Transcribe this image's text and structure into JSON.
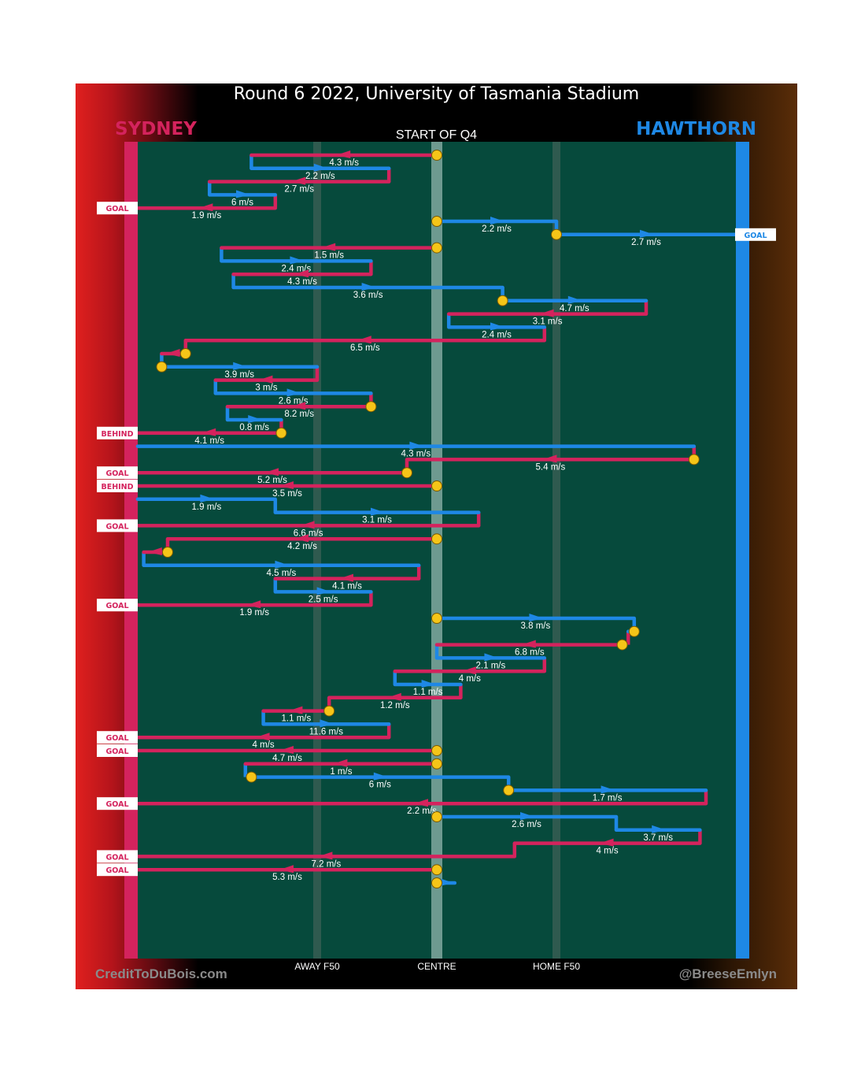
{
  "title": "Round 6 2022, University of Tasmania Stadium",
  "subtitle": "START OF Q4",
  "teams": {
    "left": {
      "name": "SYDNEY",
      "color": "#d4235d"
    },
    "right": {
      "name": "HAWTHORN",
      "color": "#1e88e5"
    }
  },
  "footer": {
    "left": "CreditToDuBois.com",
    "right": "@BreeseEmlyn"
  },
  "colors": {
    "field": "#064a3c",
    "sydney": "#d4235d",
    "hawthorn": "#1e88e5",
    "marker": "#f5c518",
    "centre_band": "#6e9a90"
  },
  "chart_data": {
    "type": "line",
    "description_axis": "field position from Sydney goal line (0) to Hawthorn goal line (1)",
    "x_ticks": [
      {
        "label": "AWAY F50",
        "value": 0.3
      },
      {
        "label": "CENTRE",
        "value": 0.5
      },
      {
        "label": "HOME F50",
        "value": 0.7
      }
    ],
    "chains": [
      {
        "team": "sydney",
        "from": 0.5,
        "to": 0.19,
        "speed": "4.3 m/s",
        "start_marker": true
      },
      {
        "team": "hawthorn",
        "from": 0.19,
        "to": 0.42,
        "speed": "2.2 m/s"
      },
      {
        "team": "sydney",
        "from": 0.42,
        "to": 0.12,
        "speed": "2.7 m/s"
      },
      {
        "team": "hawthorn",
        "from": 0.12,
        "to": 0.23,
        "speed": "6 m/s"
      },
      {
        "team": "sydney",
        "from": 0.23,
        "to": 0.0,
        "speed": "1.9 m/s",
        "result": "GOAL"
      },
      {
        "team": "hawthorn",
        "from": 0.5,
        "to": 0.7,
        "speed": "2.2 m/s",
        "start_marker": true
      },
      {
        "team": "hawthorn",
        "from": 0.7,
        "to": 1.0,
        "speed": "2.7 m/s",
        "start_marker": true,
        "result": "GOAL"
      },
      {
        "team": "sydney",
        "from": 0.5,
        "to": 0.14,
        "speed": "1.5 m/s",
        "start_marker": true
      },
      {
        "team": "hawthorn",
        "from": 0.14,
        "to": 0.39,
        "speed": "2.4 m/s"
      },
      {
        "team": "sydney",
        "from": 0.39,
        "to": 0.16,
        "speed": "4.3 m/s"
      },
      {
        "team": "hawthorn",
        "from": 0.16,
        "to": 0.61,
        "speed": "3.6 m/s"
      },
      {
        "team": "hawthorn",
        "from": 0.61,
        "to": 0.85,
        "speed": "4.7 m/s",
        "start_marker": true
      },
      {
        "team": "sydney",
        "from": 0.85,
        "to": 0.52,
        "speed": "3.1 m/s"
      },
      {
        "team": "hawthorn",
        "from": 0.52,
        "to": 0.68,
        "speed": "2.4 m/s"
      },
      {
        "team": "sydney",
        "from": 0.68,
        "to": 0.08,
        "speed": "6.5 m/s"
      },
      {
        "team": "sydney",
        "from": 0.08,
        "to": 0.04,
        "speed": "",
        "start_marker": true
      },
      {
        "team": "hawthorn",
        "from": 0.04,
        "to": 0.3,
        "speed": "3.9 m/s",
        "start_marker": true
      },
      {
        "team": "sydney",
        "from": 0.3,
        "to": 0.13,
        "speed": "3 m/s"
      },
      {
        "team": "hawthorn",
        "from": 0.13,
        "to": 0.39,
        "speed": "2.6 m/s"
      },
      {
        "team": "sydney",
        "from": 0.39,
        "to": 0.15,
        "speed": "8.2 m/s",
        "start_marker": true
      },
      {
        "team": "hawthorn",
        "from": 0.15,
        "to": 0.24,
        "speed": "0.8 m/s"
      },
      {
        "team": "sydney",
        "from": 0.24,
        "to": 0.0,
        "speed": "4.1 m/s",
        "start_marker": true,
        "result": "BEHIND"
      },
      {
        "team": "hawthorn",
        "from": 0.0,
        "to": 0.93,
        "speed": "4.3 m/s"
      },
      {
        "team": "sydney",
        "from": 0.93,
        "to": 0.45,
        "speed": "5.4 m/s",
        "start_marker": true
      },
      {
        "team": "sydney",
        "from": 0.45,
        "to": 0.0,
        "speed": "5.2 m/s",
        "start_marker": true,
        "result": "GOAL"
      },
      {
        "team": "sydney",
        "from": 0.5,
        "to": 0.0,
        "speed": "3.5 m/s",
        "start_marker": true,
        "result": "BEHIND"
      },
      {
        "team": "hawthorn",
        "from": 0.0,
        "to": 0.23,
        "speed": "1.9 m/s"
      },
      {
        "team": "hawthorn",
        "from": 0.23,
        "to": 0.57,
        "speed": "3.1 m/s"
      },
      {
        "team": "sydney",
        "from": 0.57,
        "to": 0.0,
        "speed": "6.6 m/s",
        "result": "GOAL"
      },
      {
        "team": "sydney",
        "from": 0.5,
        "to": 0.05,
        "speed": "4.2 m/s",
        "start_marker": true
      },
      {
        "team": "sydney",
        "from": 0.05,
        "to": 0.01,
        "speed": "",
        "start_marker": true
      },
      {
        "team": "hawthorn",
        "from": 0.01,
        "to": 0.47,
        "speed": "4.5 m/s"
      },
      {
        "team": "sydney",
        "from": 0.47,
        "to": 0.23,
        "speed": "4.1 m/s"
      },
      {
        "team": "hawthorn",
        "from": 0.23,
        "to": 0.39,
        "speed": "2.5 m/s"
      },
      {
        "team": "sydney",
        "from": 0.39,
        "to": 0.0,
        "speed": "1.9 m/s",
        "result": "GOAL"
      },
      {
        "team": "hawthorn",
        "from": 0.5,
        "to": 0.83,
        "speed": "3.8 m/s",
        "start_marker": true
      },
      {
        "team": "hawthorn",
        "from": 0.83,
        "to": 0.82,
        "speed": "",
        "start_marker": true
      },
      {
        "team": "sydney",
        "from": 0.81,
        "to": 0.5,
        "speed": "6.8 m/s",
        "start_marker": true
      },
      {
        "team": "hawthorn",
        "from": 0.5,
        "to": 0.68,
        "speed": "2.1 m/s"
      },
      {
        "team": "sydney",
        "from": 0.68,
        "to": 0.43,
        "speed": "4 m/s"
      },
      {
        "team": "hawthorn",
        "from": 0.43,
        "to": 0.54,
        "speed": "1.1 m/s"
      },
      {
        "team": "sydney",
        "from": 0.54,
        "to": 0.32,
        "speed": "1.2 m/s"
      },
      {
        "team": "sydney",
        "from": 0.32,
        "to": 0.21,
        "speed": "1.1 m/s",
        "start_marker": true
      },
      {
        "team": "hawthorn",
        "from": 0.21,
        "to": 0.42,
        "speed": "11.6 m/s"
      },
      {
        "team": "sydney",
        "from": 0.42,
        "to": 0.0,
        "speed": "4 m/s",
        "result": "GOAL"
      },
      {
        "team": "sydney",
        "from": 0.5,
        "to": 0.0,
        "speed": "4.7 m/s",
        "start_marker": true,
        "result": "GOAL"
      },
      {
        "team": "sydney",
        "from": 0.5,
        "to": 0.18,
        "speed": "1 m/s",
        "start_marker": true
      },
      {
        "team": "hawthorn",
        "from": 0.19,
        "to": 0.62,
        "speed": "6 m/s",
        "start_marker": true
      },
      {
        "team": "hawthorn",
        "from": 0.62,
        "to": 0.95,
        "speed": "1.7 m/s",
        "start_marker": true
      },
      {
        "team": "sydney",
        "from": 0.95,
        "to": 0.0,
        "speed": "2.2 m/s",
        "result": "GOAL"
      },
      {
        "team": "hawthorn",
        "from": 0.5,
        "to": 0.8,
        "speed": "2.6 m/s",
        "start_marker": true
      },
      {
        "team": "hawthorn",
        "from": 0.8,
        "to": 0.94,
        "speed": "3.7 m/s"
      },
      {
        "team": "sydney",
        "from": 0.94,
        "to": 0.63,
        "speed": "4 m/s"
      },
      {
        "team": "sydney",
        "from": 0.63,
        "to": 0.0,
        "speed": "7.2 m/s",
        "result": "GOAL"
      },
      {
        "team": "sydney",
        "from": 0.5,
        "to": 0.0,
        "speed": "5.3 m/s",
        "start_marker": true,
        "result": "GOAL"
      },
      {
        "team": "hawthorn",
        "from": 0.5,
        "to": 0.53,
        "speed": "",
        "start_marker": true
      }
    ]
  }
}
